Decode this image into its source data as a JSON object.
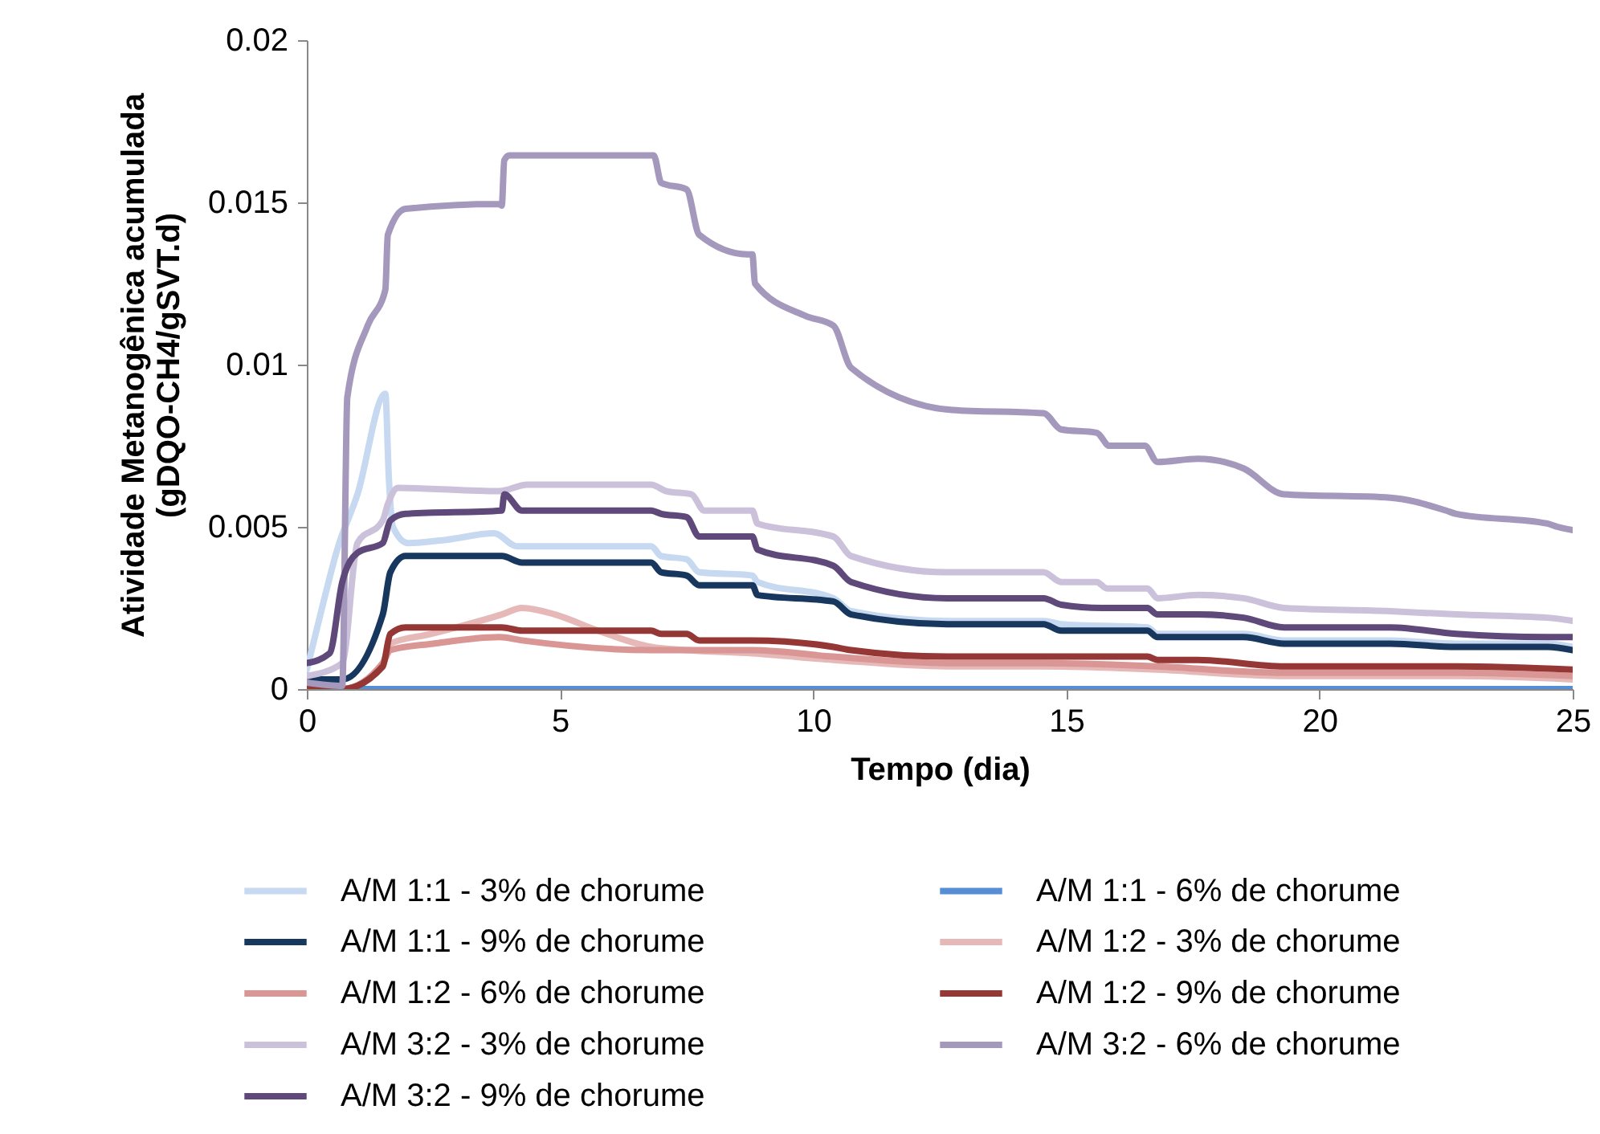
{
  "chart_data": {
    "type": "line",
    "xlabel": "Tempo (dia)",
    "ylabel": "Atividade Metanogênica acumulada\n(gDQO-CH4/gSVT.d)",
    "xlim": [
      0,
      25
    ],
    "xticks": [
      0,
      5,
      10,
      15,
      20,
      25
    ],
    "ylim": [
      0,
      0.02
    ],
    "yticks": [
      0,
      0.005,
      0.01,
      0.015,
      0.02
    ],
    "grid": false,
    "legend": "bottom",
    "line_style": "solid",
    "marker": "none",
    "series": [
      {
        "name": "A/M 1:1 - 3% de chorume",
        "color": "#c6d9f0",
        "x": [
          0,
          0.3,
          0.6,
          1.0,
          1.55,
          1.62,
          1.7,
          2.0,
          2.75,
          3.7,
          4.15,
          6.8,
          7.0,
          7.5,
          7.75,
          8.8,
          8.9,
          10.4,
          10.75,
          12.65,
          14.55,
          14.9,
          16.6,
          16.8,
          17.6,
          18.5,
          19.3,
          21.4,
          22.7,
          24.5,
          25
        ],
        "values": [
          0.0006,
          0.0025,
          0.0043,
          0.006,
          0.0091,
          0.0065,
          0.005,
          0.0045,
          0.0046,
          0.0048,
          0.0044,
          0.0044,
          0.0041,
          0.004,
          0.0036,
          0.0035,
          0.0033,
          0.0028,
          0.0024,
          0.0021,
          0.0021,
          0.002,
          0.0019,
          0.0017,
          0.0017,
          0.0017,
          0.0015,
          0.0015,
          0.0014,
          0.0014,
          0.0013
        ]
      },
      {
        "name": "A/M 1:1 - 6% de chorume",
        "color": "#558ed5",
        "x": [
          0.7,
          25
        ],
        "values": [
          0,
          0
        ]
      },
      {
        "name": "A/M 1:1 - 9% de chorume",
        "color": "#17375e",
        "x": [
          0,
          0.7,
          1.5,
          1.65,
          1.95,
          3.85,
          4.25,
          6.8,
          7.0,
          7.5,
          7.75,
          8.8,
          8.9,
          10.4,
          10.75,
          12.65,
          14.55,
          14.9,
          16.6,
          16.8,
          17.6,
          18.5,
          19.3,
          21.4,
          22.7,
          24.5,
          25
        ],
        "values": [
          0.0003,
          0.0003,
          0.0023,
          0.0036,
          0.0041,
          0.0041,
          0.0039,
          0.0039,
          0.0036,
          0.0035,
          0.0032,
          0.0032,
          0.0029,
          0.0027,
          0.0023,
          0.002,
          0.002,
          0.0018,
          0.0018,
          0.0016,
          0.0016,
          0.0016,
          0.0014,
          0.0014,
          0.0013,
          0.0013,
          0.0012
        ]
      },
      {
        "name": "A/M 1:2 - 3% de chorume",
        "color": "#e6b9b8",
        "x": [
          0,
          0.7,
          1.5,
          1.65,
          2.45,
          3.85,
          4.25,
          4.9,
          5.75,
          6.8,
          7.5,
          8.8,
          10.4,
          12.65,
          14.55,
          16.8,
          19.3,
          22.7,
          25
        ],
        "values": [
          0,
          0,
          0.0008,
          0.0014,
          0.0017,
          0.0023,
          0.0025,
          0.0023,
          0.0018,
          0.0013,
          0.0012,
          0.0011,
          0.0009,
          0.0007,
          0.0007,
          0.0006,
          0.0004,
          0.0004,
          0.0003
        ]
      },
      {
        "name": "A/M 1:2 - 6% de chorume",
        "color": "#d99694",
        "x": [
          0,
          0.7,
          1.5,
          1.65,
          2.5,
          3.8,
          4.25,
          6.8,
          7.75,
          8.8,
          10.4,
          12.65,
          14.55,
          16.8,
          19.3,
          22.7,
          25
        ],
        "values": [
          0,
          0,
          0.0008,
          0.0012,
          0.0014,
          0.0016,
          0.0015,
          0.0012,
          0.0012,
          0.0012,
          0.001,
          0.0008,
          0.0008,
          0.0007,
          0.0005,
          0.0005,
          0.0004
        ]
      },
      {
        "name": "A/M 1:2 - 9% de chorume",
        "color": "#953735",
        "x": [
          0,
          0.7,
          1.5,
          1.65,
          1.95,
          3.85,
          4.25,
          6.8,
          7.0,
          7.5,
          7.75,
          8.8,
          10.4,
          10.75,
          12.65,
          14.55,
          16.6,
          16.8,
          17.6,
          19.3,
          22.7,
          25
        ],
        "values": [
          0,
          0,
          0.0007,
          0.0017,
          0.0019,
          0.0019,
          0.0018,
          0.0018,
          0.0017,
          0.0017,
          0.0015,
          0.0015,
          0.0013,
          0.0012,
          0.001,
          0.001,
          0.001,
          0.0009,
          0.0009,
          0.0007,
          0.0007,
          0.0006
        ]
      },
      {
        "name": "A/M 3:2 - 3% de chorume",
        "color": "#ccc1da",
        "x": [
          0,
          0.7,
          1.0,
          1.5,
          1.6,
          1.8,
          3.8,
          4.35,
          6.8,
          7.1,
          7.6,
          7.85,
          8.8,
          8.9,
          10.4,
          10.75,
          12.65,
          14.55,
          14.9,
          15.6,
          15.8,
          16.6,
          16.8,
          17.6,
          18.5,
          19.3,
          21.4,
          22.7,
          24.5,
          25
        ],
        "values": [
          0.0004,
          0.0008,
          0.0045,
          0.0052,
          0.0057,
          0.0062,
          0.0061,
          0.0063,
          0.0063,
          0.0061,
          0.006,
          0.0055,
          0.0055,
          0.0051,
          0.0047,
          0.0041,
          0.0036,
          0.0036,
          0.0033,
          0.0033,
          0.0031,
          0.0031,
          0.0028,
          0.0029,
          0.0028,
          0.0025,
          0.0024,
          0.0023,
          0.0022,
          0.0021
        ]
      },
      {
        "name": "A/M 3:2 - 6% de chorume",
        "color": "#a598bd",
        "x": [
          0,
          0.7,
          0.8,
          1.2,
          1.55,
          1.6,
          1.95,
          3.8,
          3.85,
          3.9,
          4.0,
          6.85,
          7.0,
          7.5,
          7.75,
          8.7,
          8.8,
          8.85,
          9.85,
          10.4,
          10.75,
          12.75,
          14.55,
          14.9,
          15.6,
          15.85,
          16.55,
          16.8,
          17.6,
          18.5,
          19.3,
          21.4,
          22.5,
          22.7,
          24.5,
          24.7,
          25
        ],
        "values": [
          0.0002,
          0.0001,
          0.009,
          0.0112,
          0.0123,
          0.014,
          0.0148,
          0.01495,
          0.0149,
          0.0163,
          0.01645,
          0.01645,
          0.0156,
          0.0154,
          0.014,
          0.0134,
          0.0134,
          0.0125,
          0.0115,
          0.0112,
          0.0099,
          0.0086,
          0.0085,
          0.008,
          0.0079,
          0.0075,
          0.0075,
          0.007,
          0.0071,
          0.0068,
          0.006,
          0.0059,
          0.0055,
          0.0054,
          0.0051,
          0.005,
          0.0049
        ]
      },
      {
        "name": "A/M 3:2 - 9% de chorume",
        "color": "#5f497a",
        "x": [
          0,
          0.45,
          0.7,
          1.0,
          1.5,
          1.65,
          1.95,
          3.85,
          3.9,
          4.25,
          6.8,
          7.0,
          7.5,
          7.75,
          8.8,
          8.9,
          10.4,
          10.75,
          12.65,
          14.55,
          14.9,
          15.7,
          16.6,
          16.8,
          17.6,
          18.5,
          19.3,
          21.4,
          22.7,
          24.5,
          25
        ],
        "values": [
          0.0008,
          0.0011,
          0.0033,
          0.0042,
          0.0045,
          0.0052,
          0.0054,
          0.0055,
          0.006,
          0.0055,
          0.0055,
          0.0054,
          0.0053,
          0.0047,
          0.0047,
          0.0043,
          0.0038,
          0.0033,
          0.0028,
          0.0028,
          0.0026,
          0.0025,
          0.0025,
          0.0023,
          0.0023,
          0.0022,
          0.0019,
          0.0019,
          0.0017,
          0.0016,
          0.0016
        ]
      }
    ]
  }
}
